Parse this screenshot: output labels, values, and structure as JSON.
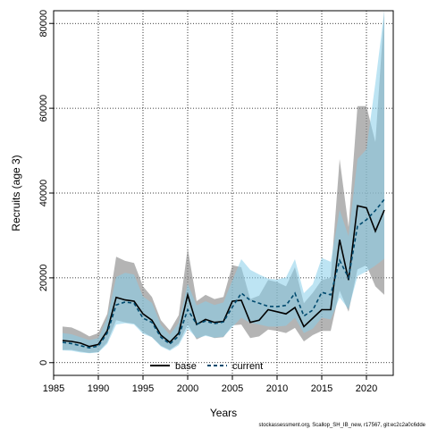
{
  "chart_data": {
    "type": "line",
    "xlabel": "Years",
    "ylabel": "Recruits (age 3)",
    "xlim": [
      1985,
      2023
    ],
    "ylim": [
      -3000,
      83000
    ],
    "x_ticks": [
      1985,
      1990,
      1995,
      2000,
      2005,
      2010,
      2015,
      2020
    ],
    "y_ticks": [
      0,
      20000,
      40000,
      60000,
      80000
    ],
    "grid": true,
    "legend_position": "bottom-center",
    "x": [
      1986,
      1987,
      1988,
      1989,
      1990,
      1991,
      1992,
      1993,
      1994,
      1995,
      1996,
      1997,
      1998,
      1999,
      2000,
      2001,
      2002,
      2003,
      2004,
      2005,
      2006,
      2007,
      2008,
      2009,
      2010,
      2011,
      2012,
      2013,
      2014,
      2015,
      2016,
      2017,
      2018,
      2019,
      2020,
      2021,
      2022
    ],
    "series": [
      {
        "name": "base",
        "color": "#000000",
        "style": "solid",
        "band_color": "#8c8c8c",
        "values": [
          5200,
          5000,
          4600,
          3800,
          4300,
          7500,
          15400,
          14800,
          14500,
          11500,
          10000,
          6500,
          4800,
          7000,
          16000,
          9000,
          10200,
          9500,
          9700,
          14500,
          14700,
          9500,
          10000,
          12500,
          12000,
          11500,
          13000,
          8500,
          10500,
          12500,
          12500,
          29000,
          19500,
          37000,
          36500,
          31000,
          36000
        ],
        "lower": [
          3000,
          3000,
          2600,
          2300,
          2500,
          4800,
          10000,
          9500,
          9200,
          7200,
          6000,
          4000,
          3000,
          4500,
          9000,
          5500,
          6500,
          5800,
          6000,
          8800,
          9000,
          5800,
          6200,
          7800,
          7500,
          7000,
          8200,
          5000,
          6500,
          7500,
          7500,
          17000,
          12000,
          22000,
          23000,
          18000,
          16000
        ],
        "upper": [
          8500,
          8300,
          7400,
          6200,
          7000,
          11500,
          25000,
          24000,
          23500,
          18000,
          15500,
          10000,
          7600,
          11200,
          27000,
          14500,
          16000,
          15000,
          15500,
          23000,
          22500,
          15000,
          15800,
          19500,
          19000,
          18000,
          22500,
          14000,
          16500,
          19500,
          20000,
          48000,
          32000,
          60500,
          60500,
          52000,
          83000
        ]
      },
      {
        "name": "current",
        "color": "#004a6e",
        "style": "dashed",
        "band_color": "#87cdea",
        "values": [
          4800,
          4500,
          4000,
          3500,
          3900,
          7000,
          13600,
          14300,
          14000,
          10500,
          9500,
          6000,
          4400,
          6300,
          12500,
          9100,
          9800,
          9200,
          9600,
          13100,
          16400,
          14700,
          14000,
          13300,
          13200,
          13500,
          16400,
          11000,
          12400,
          16600,
          16000,
          24100,
          20000,
          32200,
          33700,
          35900,
          38500
        ],
        "lower": [
          2900,
          2800,
          2400,
          2200,
          2400,
          4400,
          9000,
          9300,
          9000,
          6800,
          6000,
          3800,
          2800,
          4100,
          8000,
          5800,
          6300,
          5900,
          6100,
          8400,
          10600,
          9400,
          9000,
          8500,
          8500,
          8700,
          10600,
          7000,
          8000,
          10600,
          10200,
          15400,
          12600,
          20400,
          21500,
          22900,
          24500
        ],
        "upper": [
          7000,
          6700,
          6000,
          5300,
          5800,
          10400,
          20200,
          21200,
          20800,
          15600,
          14100,
          8900,
          6600,
          9400,
          18600,
          13500,
          14500,
          13600,
          14200,
          19400,
          24400,
          21900,
          20800,
          19800,
          19600,
          20100,
          24400,
          16400,
          18500,
          24700,
          23800,
          36000,
          29800,
          48000,
          50300,
          66000,
          83000
        ]
      }
    ]
  },
  "footer_note": "stockassessment.org, Scallop_SH_IB_new, r17567, git:ec2c2a0c6dde"
}
